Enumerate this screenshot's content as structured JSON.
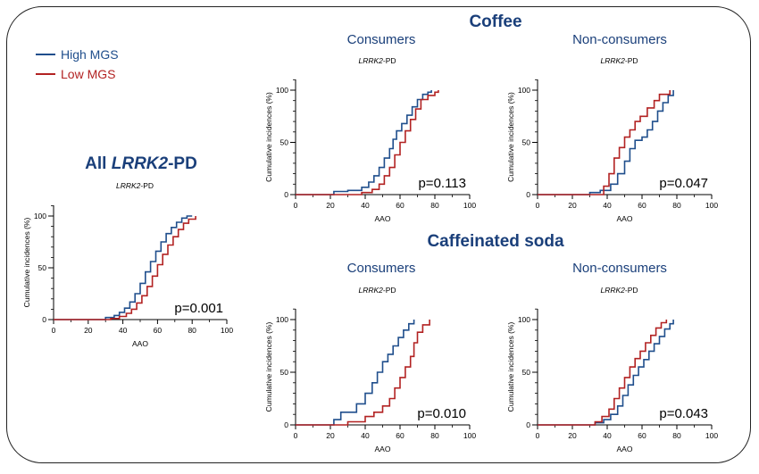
{
  "legend": {
    "items": [
      {
        "label": "High MGS",
        "color": "#1f4e8c"
      },
      {
        "label": "Low MGS",
        "color": "#b22222"
      }
    ]
  },
  "titles": {
    "coffee": "Coffee",
    "soda": "Caffeinated soda",
    "consumers": "Consumers",
    "non_consumers": "Non-consumers",
    "all_gene": "LRRK2",
    "all_suffix": "-PD",
    "all_prefix": "All "
  },
  "chart_data": [
    {
      "id": "all",
      "type": "line",
      "subtitle_gene": "LRRK2",
      "subtitle_suffix": "-PD",
      "xlabel": "AAO",
      "ylabel": "Cumulative incidences (%)",
      "xlim": [
        0,
        100
      ],
      "ylim": [
        0,
        100
      ],
      "xticks": [
        0,
        20,
        40,
        60,
        80,
        100
      ],
      "yticks": [
        0,
        50,
        100
      ],
      "pvalue": "p=0.001",
      "series": [
        {
          "name": "High MGS",
          "color": "#1f4e8c",
          "x": [
            0,
            25,
            30,
            35,
            38,
            41,
            44,
            47,
            50,
            53,
            56,
            59,
            62,
            65,
            68,
            71,
            74,
            77,
            80
          ],
          "y": [
            0,
            0,
            2,
            4,
            7,
            11,
            17,
            25,
            35,
            46,
            56,
            66,
            75,
            83,
            89,
            94,
            98,
            100,
            100
          ]
        },
        {
          "name": "Low MGS",
          "color": "#b22222",
          "x": [
            0,
            28,
            33,
            38,
            42,
            45,
            48,
            51,
            54,
            57,
            60,
            63,
            66,
            69,
            72,
            75,
            78,
            82
          ],
          "y": [
            0,
            0,
            1,
            3,
            6,
            10,
            16,
            23,
            32,
            42,
            53,
            63,
            72,
            80,
            87,
            93,
            97,
            100
          ]
        }
      ]
    },
    {
      "id": "coffee-consumers",
      "type": "line",
      "subtitle_gene": "LRRK2",
      "subtitle_suffix": "-PD",
      "xlabel": "AAO",
      "ylabel": "Cumulative incidences (%)",
      "xlim": [
        0,
        100
      ],
      "ylim": [
        0,
        100
      ],
      "xticks": [
        0,
        20,
        40,
        60,
        80,
        100
      ],
      "yticks": [
        0,
        50,
        100
      ],
      "pvalue": "p=0.113",
      "series": [
        {
          "name": "High MGS",
          "color": "#1f4e8c",
          "x": [
            0,
            22,
            30,
            38,
            42,
            45,
            48,
            51,
            54,
            56,
            58,
            61,
            64,
            67,
            70,
            73,
            76,
            78
          ],
          "y": [
            0,
            3,
            4,
            7,
            12,
            18,
            26,
            35,
            44,
            53,
            61,
            68,
            76,
            84,
            91,
            96,
            98,
            100
          ]
        },
        {
          "name": "Low MGS",
          "color": "#b22222",
          "x": [
            0,
            38,
            44,
            48,
            51,
            54,
            57,
            60,
            63,
            66,
            69,
            72,
            76,
            80,
            82
          ],
          "y": [
            0,
            2,
            5,
            10,
            18,
            26,
            38,
            50,
            61,
            72,
            82,
            91,
            95,
            98,
            100
          ]
        }
      ]
    },
    {
      "id": "coffee-non-consumers",
      "type": "line",
      "subtitle_gene": "LRRK2",
      "subtitle_suffix": "-PD",
      "xlabel": "AAO",
      "ylabel": "Cumulative incidences (%)",
      "xlim": [
        0,
        100
      ],
      "ylim": [
        0,
        100
      ],
      "xticks": [
        0,
        20,
        40,
        60,
        80,
        100
      ],
      "yticks": [
        0,
        50,
        100
      ],
      "pvalue": "p=0.047",
      "series": [
        {
          "name": "High MGS",
          "color": "#1f4e8c",
          "x": [
            0,
            30,
            36,
            42,
            46,
            50,
            53,
            56,
            60,
            63,
            66,
            69,
            72,
            75,
            78
          ],
          "y": [
            0,
            2,
            4,
            10,
            20,
            32,
            44,
            52,
            55,
            62,
            70,
            80,
            88,
            95,
            100
          ]
        },
        {
          "name": "Low MGS",
          "color": "#b22222",
          "x": [
            0,
            30,
            38,
            41,
            44,
            47,
            50,
            53,
            56,
            59,
            63,
            67,
            70,
            76
          ],
          "y": [
            0,
            0,
            8,
            20,
            35,
            45,
            55,
            62,
            70,
            75,
            83,
            90,
            96,
            100
          ]
        }
      ]
    },
    {
      "id": "soda-consumers",
      "type": "line",
      "subtitle_gene": "LRRK2",
      "subtitle_suffix": "-PD",
      "xlabel": "AAO",
      "ylabel": "Cumulative incidences (%)",
      "xlim": [
        0,
        100
      ],
      "ylim": [
        0,
        100
      ],
      "xticks": [
        0,
        20,
        40,
        60,
        80,
        100
      ],
      "yticks": [
        0,
        50,
        100
      ],
      "pvalue": "p=0.010",
      "series": [
        {
          "name": "High MGS",
          "color": "#1f4e8c",
          "x": [
            0,
            22,
            26,
            35,
            40,
            44,
            47,
            50,
            53,
            56,
            59,
            62,
            65,
            68
          ],
          "y": [
            0,
            5,
            12,
            20,
            30,
            40,
            50,
            60,
            67,
            75,
            83,
            90,
            96,
            100
          ]
        },
        {
          "name": "Low MGS",
          "color": "#b22222",
          "x": [
            0,
            30,
            40,
            45,
            50,
            54,
            57,
            60,
            63,
            66,
            68,
            70,
            73,
            77
          ],
          "y": [
            0,
            3,
            8,
            12,
            18,
            25,
            35,
            45,
            55,
            65,
            78,
            88,
            95,
            100
          ]
        }
      ]
    },
    {
      "id": "soda-non-consumers",
      "type": "line",
      "subtitle_gene": "LRRK2",
      "subtitle_suffix": "-PD",
      "xlabel": "AAO",
      "ylabel": "Cumulative incidences (%)",
      "xlim": [
        0,
        100
      ],
      "ylim": [
        0,
        100
      ],
      "xticks": [
        0,
        20,
        40,
        60,
        80,
        100
      ],
      "yticks": [
        0,
        50,
        100
      ],
      "pvalue": "p=0.043",
      "series": [
        {
          "name": "High MGS",
          "color": "#1f4e8c",
          "x": [
            0,
            33,
            38,
            42,
            46,
            49,
            52,
            55,
            58,
            61,
            64,
            67,
            70,
            73,
            76,
            78
          ],
          "y": [
            0,
            2,
            5,
            10,
            18,
            28,
            38,
            47,
            55,
            62,
            70,
            77,
            84,
            91,
            96,
            100
          ]
        },
        {
          "name": "Low MGS",
          "color": "#b22222",
          "x": [
            0,
            33,
            37,
            41,
            44,
            47,
            50,
            53,
            56,
            59,
            62,
            65,
            68,
            71,
            74
          ],
          "y": [
            0,
            3,
            8,
            15,
            25,
            35,
            45,
            55,
            63,
            70,
            78,
            85,
            92,
            97,
            100
          ]
        }
      ]
    }
  ]
}
